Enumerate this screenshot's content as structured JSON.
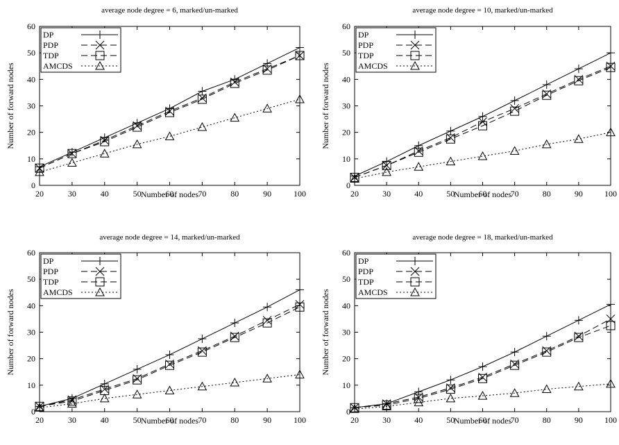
{
  "chart_data": [
    {
      "type": "line",
      "title": "average node degree = 6, marked/un-marked",
      "xlabel": "Number of nodes",
      "ylabel": "Number of forward nodes",
      "x": [
        20,
        30,
        40,
        50,
        60,
        70,
        80,
        90,
        100
      ],
      "xlim": [
        20,
        100
      ],
      "ylim": [
        0,
        60
      ],
      "xticks": [
        20,
        30,
        40,
        50,
        60,
        70,
        80,
        90,
        100
      ],
      "yticks": [
        0,
        10,
        20,
        30,
        40,
        50,
        60
      ],
      "legend_position": "top-left",
      "grid": false,
      "series": [
        {
          "name": "DP",
          "marker": "plus",
          "dash": "solid",
          "values": [
            7,
            12.5,
            18,
            23.5,
            29,
            35.5,
            40,
            46,
            52
          ]
        },
        {
          "name": "PDP",
          "marker": "cross",
          "dash": "dashed",
          "values": [
            6.5,
            12,
            17,
            22.5,
            28,
            33,
            39,
            44,
            49
          ]
        },
        {
          "name": "TDP",
          "marker": "square",
          "dash": "dashed",
          "values": [
            6.5,
            12,
            16.5,
            22,
            27.5,
            32.5,
            38.5,
            43.5,
            49
          ]
        },
        {
          "name": "AMCDS",
          "marker": "triangle",
          "dash": "dotted",
          "values": [
            5,
            8.5,
            12,
            15.5,
            18.5,
            22,
            25.5,
            29,
            32.5
          ]
        }
      ]
    },
    {
      "type": "line",
      "title": "average node degree = 10, marked/un-marked",
      "xlabel": "Number of nodes",
      "ylabel": "Number of forward nodes",
      "x": [
        20,
        30,
        40,
        50,
        60,
        70,
        80,
        90,
        100
      ],
      "xlim": [
        20,
        100
      ],
      "ylim": [
        0,
        60
      ],
      "xticks": [
        20,
        30,
        40,
        50,
        60,
        70,
        80,
        90,
        100
      ],
      "yticks": [
        0,
        10,
        20,
        30,
        40,
        50,
        60
      ],
      "legend_position": "top-left",
      "grid": false,
      "series": [
        {
          "name": "DP",
          "marker": "plus",
          "dash": "solid",
          "values": [
            3.5,
            9,
            15,
            20.5,
            26,
            32,
            38,
            44,
            50
          ]
        },
        {
          "name": "PDP",
          "marker": "cross",
          "dash": "dashed",
          "values": [
            3,
            7.5,
            13,
            18,
            24,
            29,
            34.5,
            40,
            45
          ]
        },
        {
          "name": "TDP",
          "marker": "square",
          "dash": "dashed",
          "values": [
            3,
            7.5,
            12.5,
            17.5,
            22.5,
            28,
            34,
            39.5,
            44.5
          ]
        },
        {
          "name": "AMCDS",
          "marker": "triangle",
          "dash": "dotted",
          "values": [
            2.5,
            5,
            7,
            9,
            11,
            13,
            15.5,
            17.5,
            20
          ]
        }
      ]
    },
    {
      "type": "line",
      "title": "average node degree = 14, marked/un-marked",
      "xlabel": "Number of nodes",
      "ylabel": "Number of forward nodes",
      "x": [
        20,
        30,
        40,
        50,
        60,
        70,
        80,
        90,
        100
      ],
      "xlim": [
        20,
        100
      ],
      "ylim": [
        0,
        60
      ],
      "xticks": [
        20,
        30,
        40,
        50,
        60,
        70,
        80,
        90,
        100
      ],
      "yticks": [
        0,
        10,
        20,
        30,
        40,
        50,
        60
      ],
      "legend_position": "top-left",
      "grid": false,
      "series": [
        {
          "name": "DP",
          "marker": "plus",
          "dash": "solid",
          "values": [
            2,
            5,
            10.5,
            16,
            21.5,
            27.5,
            33.5,
            39.5,
            46
          ]
        },
        {
          "name": "PDP",
          "marker": "cross",
          "dash": "dashed",
          "values": [
            2,
            4.5,
            8.5,
            12.5,
            18,
            23,
            28.5,
            34.5,
            40.5
          ]
        },
        {
          "name": "TDP",
          "marker": "square",
          "dash": "dashed",
          "values": [
            2,
            4,
            8,
            12,
            17.5,
            22.5,
            28,
            33.5,
            39.5
          ]
        },
        {
          "name": "AMCDS",
          "marker": "triangle",
          "dash": "dotted",
          "values": [
            1.5,
            3,
            5,
            6.5,
            8,
            9.5,
            11,
            12.5,
            14
          ]
        }
      ]
    },
    {
      "type": "line",
      "title": "average node degree = 18, marked/un-marked",
      "xlabel": "Number of nodes",
      "ylabel": "Number of forward nodes",
      "x": [
        20,
        30,
        40,
        50,
        60,
        70,
        80,
        90,
        100
      ],
      "xlim": [
        20,
        100
      ],
      "ylim": [
        0,
        60
      ],
      "xticks": [
        20,
        30,
        40,
        50,
        60,
        70,
        80,
        90,
        100
      ],
      "yticks": [
        0,
        10,
        20,
        30,
        40,
        50,
        60
      ],
      "legend_position": "top-left",
      "grid": false,
      "series": [
        {
          "name": "DP",
          "marker": "plus",
          "dash": "solid",
          "values": [
            1.5,
            3,
            7.5,
            12,
            17,
            22.5,
            28.5,
            34.5,
            40.5
          ]
        },
        {
          "name": "PDP",
          "marker": "cross",
          "dash": "dashed",
          "values": [
            1.5,
            3,
            5.5,
            9,
            13,
            18,
            23,
            28.5,
            35
          ]
        },
        {
          "name": "TDP",
          "marker": "square",
          "dash": "dashed",
          "values": [
            1.5,
            2.5,
            5,
            8.5,
            12.5,
            17.5,
            22.5,
            28,
            32.5
          ]
        },
        {
          "name": "AMCDS",
          "marker": "triangle",
          "dash": "dotted",
          "values": [
            1,
            2,
            3.5,
            5,
            6,
            7,
            8.5,
            9.5,
            10.5
          ]
        }
      ]
    }
  ]
}
